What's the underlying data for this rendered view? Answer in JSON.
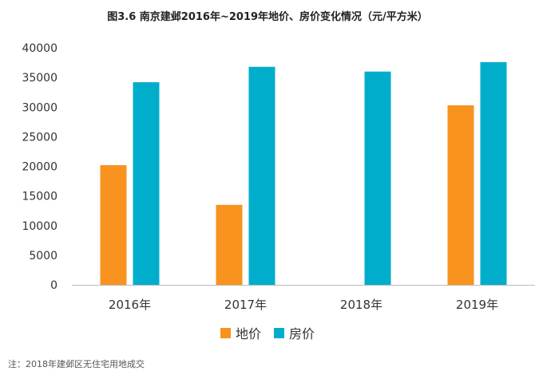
{
  "chart_data": {
    "type": "bar",
    "title": "图3.6  南京建邺2016年~2019年地价、房价变化情况（元/平方米）",
    "categories": [
      "2016年",
      "2017年",
      "2018年",
      "2019年"
    ],
    "series": [
      {
        "name": "地价",
        "color": "#F7931E",
        "values": [
          20200,
          13500,
          null,
          30300
        ]
      },
      {
        "name": "房价",
        "color": "#00AECB",
        "values": [
          34200,
          36800,
          36000,
          37600
        ]
      }
    ],
    "ylim": [
      0,
      40000
    ],
    "yticks": [
      "0",
      "5000",
      "10000",
      "15000",
      "20000",
      "25000",
      "30000",
      "35000",
      "40000"
    ],
    "grid": false,
    "legend_position": "bottom",
    "footnote": "注：2018年建邺区无住宅用地成交"
  }
}
